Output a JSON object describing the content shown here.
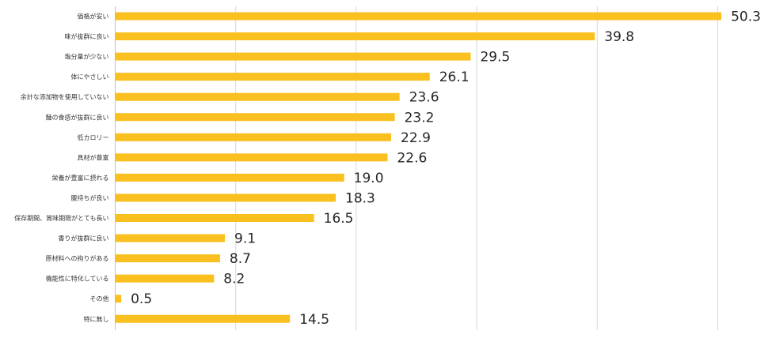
{
  "chart_data": {
    "type": "bar",
    "orientation": "horizontal",
    "title": "",
    "xlabel": "",
    "ylabel": "",
    "xlim": [
      0,
      50
    ],
    "grid": true,
    "bar_color": "#F9C01F",
    "categories": [
      "価格が安い",
      "味が抜群に良い",
      "塩分量が少ない",
      "体にやさしい",
      "余計な添加物を使用していない",
      "麺の食感が抜群に良い",
      "低カロリー",
      "具材が豊富",
      "栄養が豊富に摂れる",
      "腹持ちが良い",
      "保存期間、賞味期限がとても長い",
      "香りが抜群に良い",
      "原材料への拘りがある",
      "機能性に特化している",
      "その他",
      "特に無し"
    ],
    "values": [
      50.3,
      39.8,
      29.5,
      26.1,
      23.6,
      23.2,
      22.9,
      22.6,
      19.0,
      18.3,
      16.5,
      9.1,
      8.7,
      8.2,
      0.5,
      14.5
    ],
    "value_labels": [
      "50.3",
      "39.8",
      "29.5",
      "26.1",
      "23.6",
      "23.2",
      "22.9",
      "22.6",
      "19.0",
      "18.3",
      "16.5",
      "9.1",
      "8.7",
      "8.2",
      "0.5",
      "14.5"
    ]
  }
}
